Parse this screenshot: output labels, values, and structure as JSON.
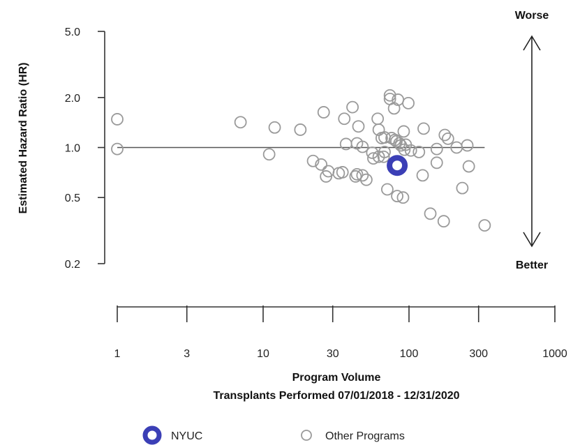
{
  "chart_data": {
    "type": "scatter",
    "ylabel": "Estimated Hazard Ratio (HR)",
    "xlabel": "Program Volume",
    "xlabel2": "Transplants Performed 07/01/2018 - 12/31/2020",
    "x_scale": "log",
    "y_scale": "log",
    "xlim": [
      1,
      1000
    ],
    "ylim": [
      0.2,
      5.0
    ],
    "x_ticks": [
      1,
      3,
      10,
      30,
      100,
      300,
      1000
    ],
    "x_tick_labels": [
      "1",
      "3",
      "10",
      "30",
      "100",
      "300",
      "1000"
    ],
    "y_ticks": [
      0.2,
      0.5,
      1.0,
      2.0,
      5.0
    ],
    "y_tick_labels": [
      "0.2",
      "0.5",
      "1.0",
      "2.0",
      "5.0"
    ],
    "reference_line": {
      "y": 1.0,
      "x_range": [
        1,
        330
      ]
    },
    "direction_labels": {
      "top": "Worse",
      "bottom": "Better"
    },
    "grid": false,
    "legend_position": "bottom",
    "colors": {
      "highlight": "#3b3fb6",
      "other": "#9a9a9a",
      "axis": "#333333"
    },
    "series": [
      {
        "name": "NYUC",
        "points": [
          [
            83,
            0.78
          ]
        ]
      },
      {
        "name": "Other Programs",
        "points": [
          [
            1,
            1.48
          ],
          [
            1,
            0.98
          ],
          [
            7,
            1.42
          ],
          [
            11,
            0.91
          ],
          [
            12,
            1.32
          ],
          [
            18,
            1.28
          ],
          [
            22,
            0.83
          ],
          [
            25,
            0.79
          ],
          [
            26,
            1.63
          ],
          [
            27,
            0.67
          ],
          [
            28,
            0.72
          ],
          [
            33,
            0.7
          ],
          [
            35,
            0.71
          ],
          [
            36,
            1.49
          ],
          [
            37,
            1.05
          ],
          [
            41,
            1.75
          ],
          [
            43,
            0.67
          ],
          [
            44,
            1.06
          ],
          [
            44,
            0.69
          ],
          [
            45,
            1.34
          ],
          [
            48,
            1.01
          ],
          [
            48,
            0.68
          ],
          [
            51,
            0.64
          ],
          [
            56,
            0.93
          ],
          [
            57,
            0.86
          ],
          [
            61,
            1.49
          ],
          [
            62,
            1.28
          ],
          [
            62,
            0.88
          ],
          [
            65,
            1.14
          ],
          [
            67,
            0.88
          ],
          [
            68,
            1.15
          ],
          [
            68,
            0.94
          ],
          [
            71,
            0.56
          ],
          [
            74,
            2.06
          ],
          [
            74,
            1.96
          ],
          [
            76,
            1.14
          ],
          [
            79,
            1.72
          ],
          [
            80,
            1.11
          ],
          [
            82,
            1.09
          ],
          [
            83,
            0.51
          ],
          [
            84,
            1.94
          ],
          [
            86,
            1.06
          ],
          [
            88,
            1.03
          ],
          [
            91,
            0.5
          ],
          [
            92,
            1.25
          ],
          [
            93,
            0.97
          ],
          [
            95,
            1.04
          ],
          [
            99,
            1.85
          ],
          [
            103,
            0.96
          ],
          [
            117,
            0.94
          ],
          [
            124,
            0.68
          ],
          [
            126,
            1.3
          ],
          [
            140,
            0.4
          ],
          [
            155,
            0.98
          ],
          [
            155,
            0.81
          ],
          [
            173,
            0.36
          ],
          [
            176,
            1.19
          ],
          [
            185,
            1.13
          ],
          [
            212,
            1.0
          ],
          [
            232,
            0.57
          ],
          [
            251,
            1.03
          ],
          [
            257,
            0.77
          ],
          [
            330,
            0.34
          ]
        ]
      }
    ]
  },
  "legend": {
    "items": [
      {
        "label": "NYUC",
        "key": "highlight"
      },
      {
        "label": "Other Programs",
        "key": "other"
      }
    ]
  }
}
